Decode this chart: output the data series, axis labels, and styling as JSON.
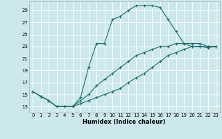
{
  "xlabel": "Humidex (Indice chaleur)",
  "bg_color": "#cce8ec",
  "grid_color": "#ffffff",
  "line_color": "#1a6e6a",
  "xlim": [
    -0.5,
    23.5
  ],
  "ylim": [
    12.0,
    30.5
  ],
  "xticks": [
    0,
    1,
    2,
    3,
    4,
    5,
    6,
    7,
    8,
    9,
    10,
    11,
    12,
    13,
    14,
    15,
    16,
    17,
    18,
    19,
    20,
    21,
    22,
    23
  ],
  "yticks": [
    13,
    15,
    17,
    19,
    21,
    23,
    25,
    27,
    29
  ],
  "line1_x": [
    0,
    1,
    2,
    3,
    4,
    5,
    6,
    7,
    8,
    9,
    10,
    11,
    12,
    13,
    14,
    15,
    16,
    17,
    18,
    19,
    20,
    21,
    22,
    23
  ],
  "line1_y": [
    15.5,
    14.7,
    14.0,
    13.0,
    13.0,
    13.0,
    14.5,
    19.5,
    23.5,
    23.5,
    27.5,
    28.0,
    29.0,
    29.8,
    29.8,
    29.8,
    29.5,
    27.5,
    25.5,
    23.5,
    23.0,
    23.0,
    23.0,
    23.0
  ],
  "line2_x": [
    0,
    1,
    2,
    3,
    4,
    5,
    6,
    7,
    8,
    9,
    10,
    11,
    12,
    13,
    14,
    15,
    16,
    17,
    18,
    19,
    20,
    21,
    22,
    23
  ],
  "line2_y": [
    15.5,
    14.7,
    14.0,
    13.0,
    13.0,
    13.0,
    14.0,
    15.0,
    16.5,
    17.5,
    18.5,
    19.5,
    20.5,
    21.5,
    22.0,
    22.5,
    23.0,
    23.0,
    23.5,
    23.5,
    23.5,
    23.5,
    23.0,
    23.0
  ],
  "line3_x": [
    0,
    1,
    2,
    3,
    4,
    5,
    6,
    7,
    8,
    9,
    10,
    11,
    12,
    13,
    14,
    15,
    16,
    17,
    18,
    19,
    20,
    21,
    22,
    23
  ],
  "line3_y": [
    15.5,
    14.7,
    14.0,
    13.0,
    13.0,
    13.0,
    13.5,
    14.0,
    14.5,
    15.0,
    15.5,
    16.0,
    17.0,
    17.8,
    18.5,
    19.5,
    20.5,
    21.5,
    22.0,
    22.5,
    23.0,
    23.0,
    22.8,
    23.0
  ]
}
